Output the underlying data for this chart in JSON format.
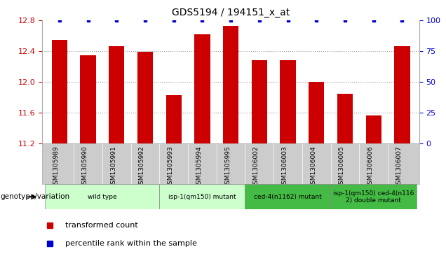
{
  "title": "GDS5194 / 194151_x_at",
  "samples": [
    "GSM1305989",
    "GSM1305990",
    "GSM1305991",
    "GSM1305992",
    "GSM1305993",
    "GSM1305994",
    "GSM1305995",
    "GSM1306002",
    "GSM1306003",
    "GSM1306004",
    "GSM1306005",
    "GSM1306006",
    "GSM1306007"
  ],
  "transformed_counts": [
    12.55,
    12.35,
    12.46,
    12.39,
    11.83,
    12.62,
    12.73,
    12.28,
    12.28,
    12.0,
    11.85,
    11.56,
    12.46
  ],
  "percentile_ranks": [
    100,
    100,
    100,
    100,
    100,
    100,
    100,
    100,
    100,
    100,
    100,
    100,
    100
  ],
  "ylim_left": [
    11.2,
    12.8
  ],
  "ylim_right": [
    0,
    100
  ],
  "yticks_left": [
    11.2,
    11.6,
    12.0,
    12.4,
    12.8
  ],
  "yticks_right": [
    0,
    25,
    50,
    75,
    100
  ],
  "bar_color": "#cc0000",
  "dot_color": "#0000cc",
  "group_boundaries": [
    {
      "start": 0,
      "end": 3,
      "label": "wild type",
      "color": "#ccffcc"
    },
    {
      "start": 4,
      "end": 6,
      "label": "isp-1(qm150) mutant",
      "color": "#ccffcc"
    },
    {
      "start": 7,
      "end": 9,
      "label": "ced-4(n1162) mutant",
      "color": "#44bb44"
    },
    {
      "start": 10,
      "end": 12,
      "label": "isp-1(qm150) ced-4(n116\n2) double mutant",
      "color": "#44bb44"
    }
  ],
  "genotype_label": "genotype/variation",
  "legend_bar_label": "transformed count",
  "legend_dot_label": "percentile rank within the sample",
  "dotted_grid_color": "#999999",
  "tick_color_left": "#cc0000",
  "tick_color_right": "#0000cc",
  "xtick_bg_color": "#cccccc",
  "spine_color": "#aaaaaa"
}
